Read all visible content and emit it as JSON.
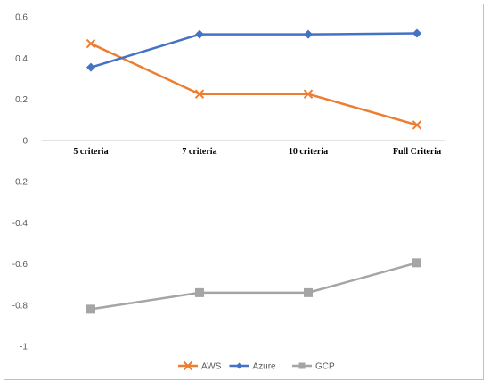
{
  "chart_data": {
    "type": "line",
    "categories": [
      "5 criteria",
      "7 criteria",
      "10 criteria",
      "Full Criteria"
    ],
    "series": [
      {
        "name": "AWS",
        "values": [
          0.47,
          0.225,
          0.225,
          0.075
        ],
        "color": "#ED7D31",
        "marker": "x"
      },
      {
        "name": "Azure",
        "values": [
          0.355,
          0.515,
          0.515,
          0.52
        ],
        "color": "#4472C4",
        "marker": "diamond"
      },
      {
        "name": "GCP",
        "values": [
          -0.82,
          -0.74,
          -0.74,
          -0.595
        ],
        "color": "#A5A5A5",
        "marker": "square"
      }
    ],
    "y_ticks": [
      "0.6",
      "0.4",
      "0.2",
      "0",
      "-0.2",
      "-0.4",
      "-0.6",
      "-0.8",
      "-1"
    ],
    "ylim": [
      -1,
      0.6
    ],
    "legend_position": "bottom",
    "gridlines": false
  }
}
